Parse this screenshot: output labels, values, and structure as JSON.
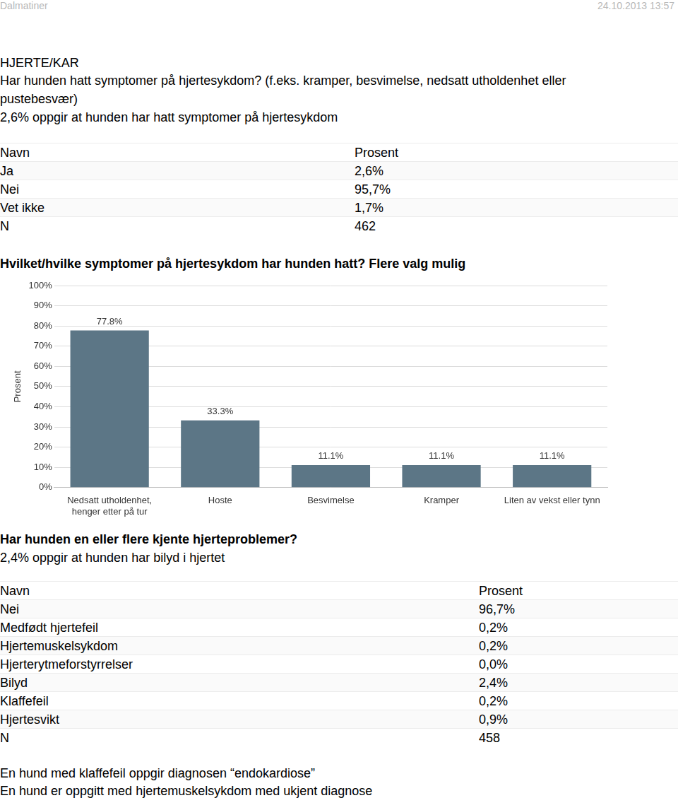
{
  "header": {
    "left": "Dalmatiner",
    "right": "24.10.2013 13:57"
  },
  "section_title": "HJERTE/KAR",
  "question1": {
    "text": "Har hunden hatt symptomer på hjertesykdom? (f.eks. kramper, besvimelse, nedsatt utholdenhet eller pustebesvær)",
    "summary": "2,6% oppgir at hunden har hatt symptomer på hjertesykdom",
    "table": {
      "columns": [
        "Navn",
        "Prosent"
      ],
      "rows": [
        [
          "Ja",
          "2,6%"
        ],
        [
          "Nei",
          "95,7%"
        ],
        [
          "Vet ikke",
          "1,7%"
        ],
        [
          "N",
          "462"
        ]
      ]
    }
  },
  "chart_heading": "Hvilket/hvilke symptomer på hjertesykdom har hunden hatt? Flere valg mulig",
  "chart_data": {
    "type": "bar",
    "y_label": "Prosent",
    "categories": [
      [
        "Nedsatt utholdenhet,",
        "henger etter på tur"
      ],
      "Hoste",
      "Besvimelse",
      "Kramper",
      "Liten av vekst eller tynn"
    ],
    "values": [
      77.8,
      33.3,
      11.1,
      11.1,
      11.1
    ],
    "value_labels": [
      "77.8%",
      "33.3%",
      "11.1%",
      "11.1%",
      "11.1%"
    ],
    "data_labels": true,
    "color": "#5c7686",
    "ylim": [
      0,
      100
    ],
    "yticks": [
      {
        "value": 0,
        "label": "0%"
      },
      {
        "value": 10,
        "label": "10%"
      },
      {
        "value": 20,
        "label": "20%"
      },
      {
        "value": 30,
        "label": "30%"
      },
      {
        "value": 40,
        "label": "40%"
      },
      {
        "value": 50,
        "label": "50%"
      },
      {
        "value": 60,
        "label": "60%"
      },
      {
        "value": 70,
        "label": "70%"
      },
      {
        "value": 80,
        "label": "80%"
      },
      {
        "value": 90,
        "label": "90%"
      },
      {
        "value": 100,
        "label": "100%"
      }
    ],
    "grid": true
  },
  "question2": {
    "text": "Har hunden en eller flere kjente hjerteproblemer?",
    "summary": "2,4% oppgir at hunden har bilyd i hjertet",
    "table": {
      "columns": [
        "Navn",
        "Prosent"
      ],
      "rows": [
        [
          "Nei",
          "96,7%"
        ],
        [
          "Medfødt hjertefeil",
          "0,2%"
        ],
        [
          "Hjertemuskelsykdom",
          "0,2%"
        ],
        [
          "Hjerterytmeforstyrrelser",
          "0,0%"
        ],
        [
          "Bilyd",
          "2,4%"
        ],
        [
          "Klaffefeil",
          "0,2%"
        ],
        [
          "Hjertesvikt",
          "0,9%"
        ],
        [
          "N",
          "458"
        ]
      ]
    }
  },
  "notes": [
    "En hund med klaffefeil oppgir diagnosen “endokardiose”",
    "En hund er oppgitt med hjertemuskelsykdom med ukjent diagnose"
  ]
}
